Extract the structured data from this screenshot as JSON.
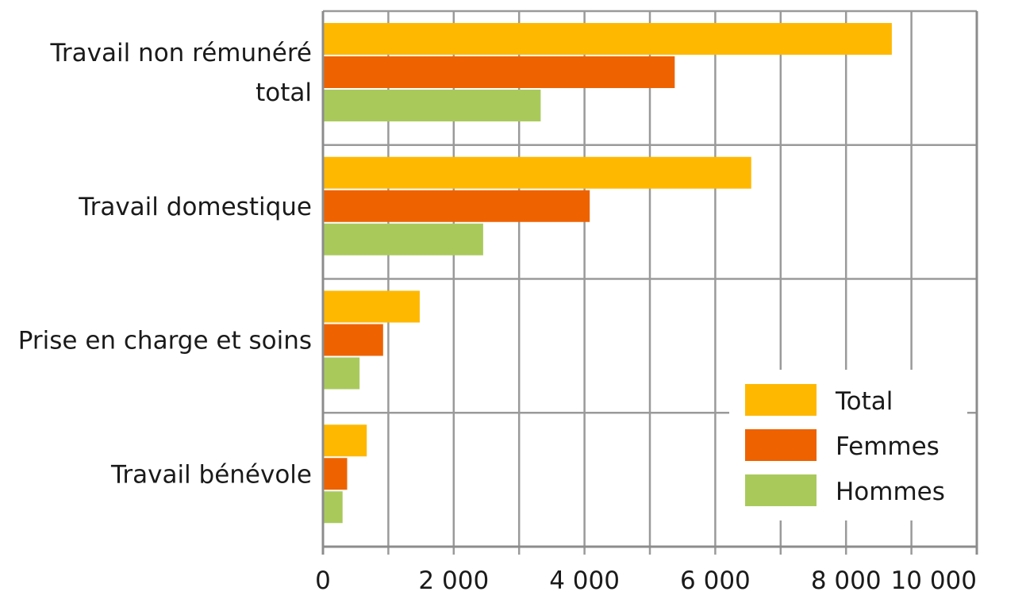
{
  "chart_data": {
    "type": "bar",
    "orientation": "horizontal",
    "categories": [
      [
        "Travail non rémunéré",
        "total"
      ],
      [
        "Travail domestique"
      ],
      [
        "Prise en charge et soins"
      ],
      [
        "Travail bénévole"
      ]
    ],
    "series": [
      {
        "name": "Total",
        "color": "#FFB800",
        "values": [
          8700,
          6550,
          1480,
          670
        ]
      },
      {
        "name": "Femmes",
        "color": "#EE6200",
        "values": [
          5380,
          4080,
          920,
          370
        ]
      },
      {
        "name": "Hommes",
        "color": "#A9CA5B",
        "values": [
          3330,
          2450,
          560,
          300
        ]
      }
    ],
    "xlim": [
      0,
      10000
    ],
    "x_ticks": [
      0,
      2000,
      4000,
      6000,
      8000,
      10000
    ],
    "x_tick_labels": [
      "0",
      "2 000",
      "4 000",
      "6 000",
      "8 000",
      "10 000"
    ],
    "grid": true,
    "legend_position": "bottom-right",
    "title": "",
    "xlabel": "",
    "ylabel": ""
  }
}
